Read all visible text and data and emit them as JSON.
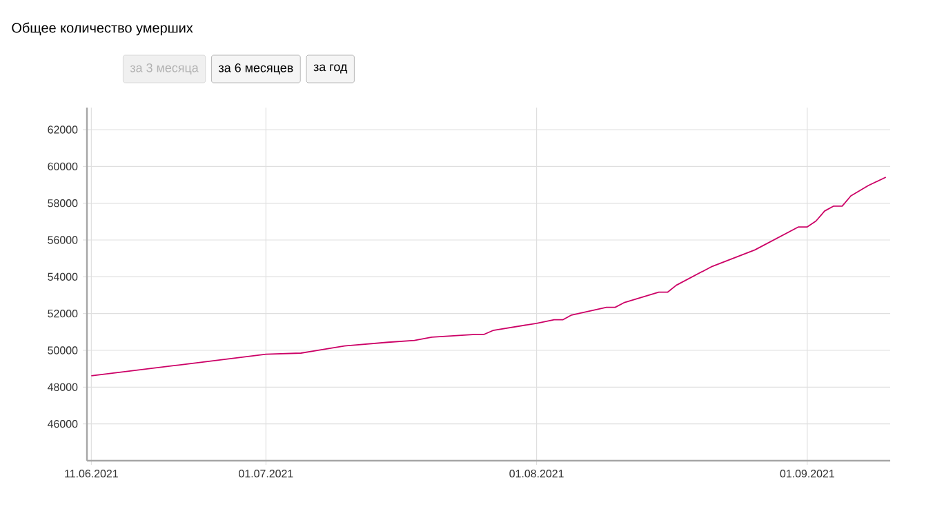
{
  "chart_data": {
    "type": "line",
    "title": "Общее количество умерших",
    "annotations": [
      "за 3 месяца",
      "за 6 месяцев",
      "за год"
    ],
    "x": [
      "2021-06-11",
      "2021-06-21",
      "2021-07-01",
      "2021-07-05",
      "2021-07-10",
      "2021-07-15",
      "2021-07-18",
      "2021-07-20",
      "2021-07-25",
      "2021-07-26",
      "2021-07-27",
      "2021-08-01",
      "2021-08-03",
      "2021-08-04",
      "2021-08-05",
      "2021-08-09",
      "2021-08-10",
      "2021-08-11",
      "2021-08-15",
      "2021-08-16",
      "2021-08-17",
      "2021-08-21",
      "2021-08-26",
      "2021-08-31",
      "2021-09-01",
      "2021-09-02",
      "2021-09-03",
      "2021-09-04",
      "2021-09-05",
      "2021-09-06",
      "2021-09-08",
      "2021-09-10"
    ],
    "series": [
      {
        "color": "#cc0066",
        "values": [
          48620,
          49200,
          49790,
          49850,
          50240,
          50440,
          50540,
          50720,
          50870,
          50870,
          51080,
          51470,
          51660,
          51660,
          51920,
          52340,
          52340,
          52590,
          53160,
          53160,
          53540,
          54540,
          55460,
          56710,
          56710,
          57030,
          57580,
          57840,
          57840,
          58400,
          58960,
          59410
        ]
      }
    ],
    "xlim": [
      "2021-06-10T12:00",
      "2021-09-10T12:00"
    ],
    "xticks": [
      {
        "value": "2021-06-11",
        "label": "11.06.2021"
      },
      {
        "value": "2021-07-01",
        "label": "01.07.2021"
      },
      {
        "value": "2021-08-01",
        "label": "01.08.2021"
      },
      {
        "value": "2021-09-01",
        "label": "01.09.2021"
      }
    ],
    "ylim": [
      44000,
      63200
    ],
    "yticks": [
      46000,
      48000,
      50000,
      52000,
      54000,
      56000,
      58000,
      60000,
      62000
    ],
    "grid": true,
    "marker": "none",
    "line_style": "solid"
  }
}
